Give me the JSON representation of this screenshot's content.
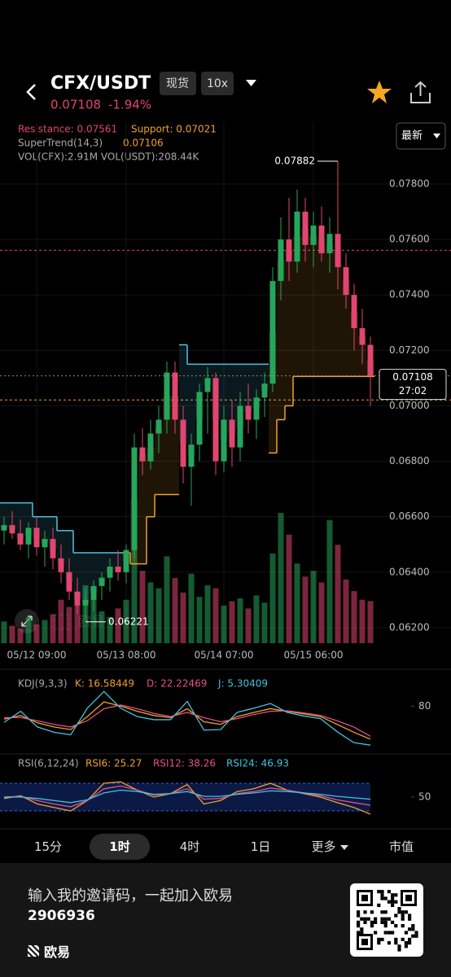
{
  "header": {
    "pair": "CFX/USDT",
    "badge_market": "现货",
    "badge_leverage": "10x",
    "price": "0.07108",
    "change": "-1.94%",
    "price_type": "最新"
  },
  "chart_data": [
    {
      "type": "candlestick",
      "resistance": {
        "label": "Resistance: 0.07561",
        "value": 0.07561
      },
      "support": {
        "label": "Support: 0.07021",
        "value": 0.07021
      },
      "supertrend_label": "SuperTrend(14,3)",
      "supertrend_value_label": "0.07106",
      "volume_label": "VOL(CFX):2.91M VOL(USDT):208.44K",
      "last_price": {
        "value": 0.07108,
        "label": "0.07108",
        "countdown": "27:02"
      },
      "max_marker": {
        "value": 0.07882,
        "label": "0.07882"
      },
      "min_marker": {
        "value": 0.06221,
        "label": "0.06221"
      },
      "ylim": [
        0.06144,
        0.08023
      ],
      "yticks": [
        {
          "value": 0.078,
          "label": "0.07800"
        },
        {
          "value": 0.076,
          "label": "0.07600"
        },
        {
          "value": 0.074,
          "label": "0.07400"
        },
        {
          "value": 0.072,
          "label": "0.07200"
        },
        {
          "value": 0.07,
          "label": "0.07000"
        },
        {
          "value": 0.068,
          "label": "0.06800"
        },
        {
          "value": 0.066,
          "label": "0.06600"
        },
        {
          "value": 0.064,
          "label": "0.06400"
        },
        {
          "value": 0.062,
          "label": "0.06200"
        }
      ],
      "categories": [
        null,
        null,
        null,
        null,
        "05/12 09:00",
        null,
        null,
        null,
        null,
        null,
        null,
        null,
        null,
        null,
        null,
        "05/13 08:00",
        null,
        null,
        null,
        null,
        null,
        null,
        null,
        null,
        null,
        null,
        null,
        "05/14 07:00",
        null,
        null,
        null,
        null,
        null,
        null,
        null,
        null,
        null,
        null,
        "05/15 06:00",
        null,
        null,
        null,
        null,
        null,
        null,
        null
      ],
      "open": [
        0.0655,
        0.0657,
        0.0654,
        0.065,
        0.0656,
        0.0649,
        0.0652,
        0.0645,
        0.064,
        0.0633,
        0.0628,
        0.063,
        0.0635,
        0.0638,
        0.0642,
        0.064,
        0.0648,
        0.0685,
        0.068,
        0.069,
        0.0695,
        0.0712,
        0.0695,
        0.0678,
        0.0686,
        0.0705,
        0.071,
        0.068,
        0.0695,
        0.0685,
        0.07,
        0.0695,
        0.0703,
        0.0708,
        0.0745,
        0.076,
        0.0752,
        0.077,
        0.0758,
        0.0765,
        0.0755,
        0.0762,
        0.075,
        0.074,
        0.0728,
        0.0722
      ],
      "high": [
        0.066,
        0.0662,
        0.0659,
        0.0658,
        0.066,
        0.0655,
        0.0656,
        0.065,
        0.0645,
        0.0638,
        0.0634,
        0.0637,
        0.064,
        0.0645,
        0.0648,
        0.065,
        0.069,
        0.0692,
        0.0695,
        0.07,
        0.0716,
        0.0716,
        0.07,
        0.069,
        0.0708,
        0.0714,
        0.0712,
        0.07,
        0.0702,
        0.0705,
        0.0708,
        0.0706,
        0.0712,
        0.075,
        0.0768,
        0.0775,
        0.0778,
        0.0775,
        0.077,
        0.0772,
        0.0768,
        0.07882,
        0.0755,
        0.0744,
        0.0735,
        0.0725
      ],
      "low": [
        0.065,
        0.0652,
        0.0648,
        0.0645,
        0.0646,
        0.0642,
        0.0641,
        0.0636,
        0.063,
        0.0625,
        0.06221,
        0.0626,
        0.063,
        0.0633,
        0.0637,
        0.0636,
        0.0645,
        0.0675,
        0.0677,
        0.0683,
        0.069,
        0.069,
        0.0672,
        0.0664,
        0.068,
        0.069,
        0.0675,
        0.0676,
        0.0678,
        0.068,
        0.069,
        0.0688,
        0.0696,
        0.0705,
        0.0738,
        0.0745,
        0.0748,
        0.0752,
        0.075,
        0.0752,
        0.0748,
        0.0742,
        0.0735,
        0.072,
        0.0715,
        0.07
      ],
      "close": [
        0.0657,
        0.0654,
        0.065,
        0.0656,
        0.0649,
        0.0652,
        0.0645,
        0.064,
        0.0633,
        0.0628,
        0.063,
        0.0635,
        0.0638,
        0.0642,
        0.064,
        0.0648,
        0.0685,
        0.068,
        0.069,
        0.0695,
        0.0712,
        0.0695,
        0.0678,
        0.0686,
        0.0705,
        0.071,
        0.068,
        0.0695,
        0.0685,
        0.07,
        0.0695,
        0.0703,
        0.0708,
        0.0745,
        0.076,
        0.0752,
        0.077,
        0.0758,
        0.0765,
        0.0755,
        0.0762,
        0.075,
        0.074,
        0.0728,
        0.0722,
        0.07108
      ],
      "supertrend": [
        0.0665,
        0.0665,
        0.0665,
        0.0665,
        0.066,
        0.066,
        0.066,
        0.0655,
        0.0655,
        0.0647,
        0.0647,
        0.0647,
        0.0647,
        0.0647,
        0.0647,
        0.0647,
        0.0643,
        0.0643,
        0.066,
        0.0668,
        0.0668,
        0.0668,
        0.0722,
        0.0715,
        0.0715,
        0.0715,
        0.0715,
        0.0715,
        0.0715,
        0.0715,
        0.0715,
        0.0715,
        0.0715,
        0.0683,
        0.0695,
        0.07,
        0.07106,
        0.07106,
        0.07106,
        0.07106,
        0.07106,
        0.07106,
        0.07106,
        0.07106,
        0.07106,
        0.07106
      ],
      "volume": [
        1.5,
        1.2,
        1.0,
        1.8,
        1.3,
        1.6,
        2.0,
        3.0,
        2.5,
        2.8,
        4.0,
        3.5,
        2.2,
        1.8,
        2.4,
        3.0,
        6.5,
        5.0,
        4.2,
        3.8,
        6.0,
        4.5,
        3.5,
        4.8,
        3.2,
        4.0,
        3.8,
        2.6,
        2.9,
        3.1,
        2.4,
        3.3,
        2.8,
        6.2,
        9.0,
        7.5,
        5.5,
        4.6,
        5.0,
        4.2,
        8.5,
        6.8,
        4.4,
        3.6,
        3.0,
        2.91
      ],
      "up_color": "#26a65b",
      "down_color": "#e0466e",
      "trend_up_color": "#f0a030",
      "trend_down_color": "#4cc3e0"
    },
    {
      "type": "line",
      "title": "KDJ(9,3,3)",
      "ylim": [
        -10,
        110
      ],
      "yticks": [
        80
      ],
      "series": [
        {
          "name": "K: 16.58449",
          "color": "#f0a030",
          "values": [
            55,
            62,
            48,
            40,
            35,
            60,
            88,
            80,
            70,
            62,
            58,
            75,
            50,
            45,
            60,
            68,
            75,
            70,
            65,
            60,
            45,
            30,
            16.58449
          ]
        },
        {
          "name": "D: 22.22469",
          "color": "#e4508a",
          "values": [
            58,
            58,
            52,
            45,
            40,
            52,
            75,
            82,
            75,
            66,
            60,
            68,
            58,
            50,
            56,
            64,
            70,
            71,
            67,
            62,
            52,
            40,
            22.22469
          ]
        },
        {
          "name": "J: 5.30409",
          "color": "#3fc4e0",
          "values": [
            49,
            70,
            40,
            30,
            25,
            76,
            108,
            76,
            60,
            54,
            54,
            89,
            34,
            35,
            68,
            76,
            85,
            68,
            61,
            56,
            31,
            10,
            5.30409
          ]
        }
      ]
    },
    {
      "type": "line",
      "title": "RSI(6,12,24)",
      "ylim": [
        10,
        90
      ],
      "yticks": [
        50
      ],
      "band": [
        30,
        70
      ],
      "series": [
        {
          "name": "RSI6: 25.27",
          "color": "#f0a030",
          "values": [
            48,
            52,
            40,
            35,
            30,
            45,
            70,
            72,
            60,
            50,
            55,
            68,
            40,
            45,
            58,
            62,
            70,
            60,
            55,
            50,
            42,
            35,
            25.27
          ]
        },
        {
          "name": "RSI12: 38.26",
          "color": "#e4508a",
          "values": [
            50,
            51,
            45,
            40,
            36,
            45,
            62,
            66,
            60,
            53,
            55,
            62,
            47,
            48,
            55,
            58,
            63,
            60,
            56,
            52,
            46,
            42,
            38.26
          ]
        },
        {
          "name": "RSI24: 46.93",
          "color": "#3fc4e0",
          "values": [
            50,
            50,
            48,
            45,
            42,
            46,
            56,
            60,
            58,
            54,
            55,
            58,
            51,
            51,
            54,
            56,
            59,
            58,
            56,
            54,
            51,
            49,
            46.93
          ]
        }
      ]
    }
  ],
  "tabs": [
    "15分",
    "1时",
    "4时",
    "1日",
    "更多",
    "市值"
  ],
  "selected_tab": 1,
  "footer": {
    "invite": "输入我的邀请码，一起加入欧易",
    "code": "2906936",
    "brand": "欧易"
  }
}
